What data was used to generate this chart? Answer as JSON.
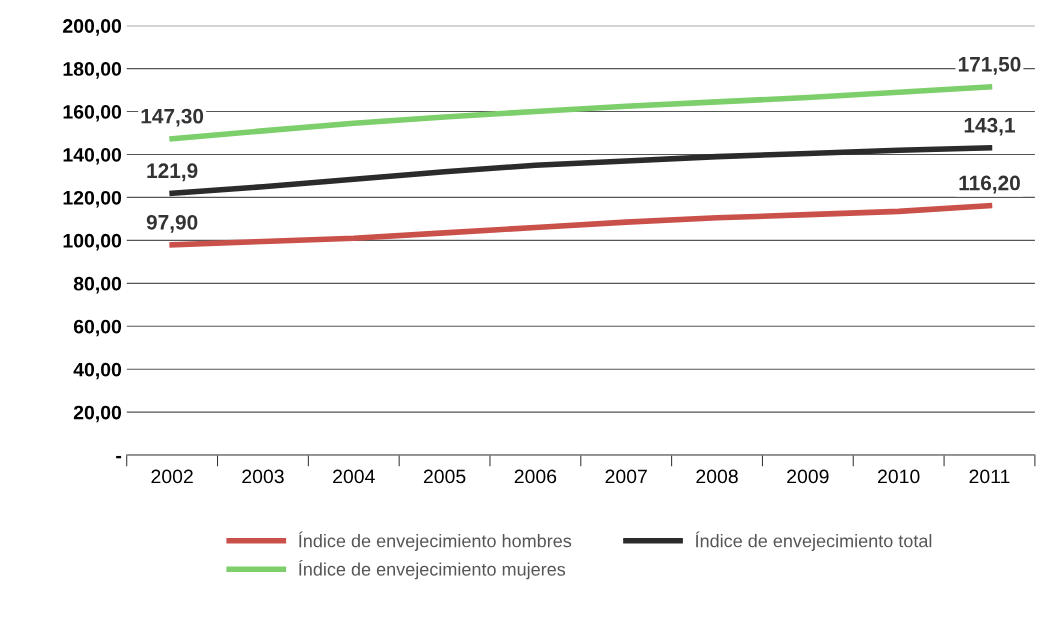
{
  "chart_data": {
    "type": "line",
    "categories": [
      "2002",
      "2003",
      "2004",
      "2005",
      "2006",
      "2007",
      "2008",
      "2009",
      "2010",
      "2011"
    ],
    "series": [
      {
        "name": "Índice de envejecimiento hombres",
        "color": "#c9514a",
        "values": [
          97.9,
          99.5,
          101,
          103.5,
          106,
          108.5,
          110.5,
          112,
          113.5,
          116.2
        ],
        "value_labels": [
          "97,90",
          null,
          null,
          null,
          null,
          null,
          null,
          null,
          null,
          "116,20"
        ]
      },
      {
        "name": "Índice de envejecimiento mujeres",
        "color": "#7ccf6a",
        "values": [
          147.3,
          151,
          154.5,
          157.5,
          160,
          162.5,
          164.5,
          166.5,
          169,
          171.5
        ],
        "value_labels": [
          "147,30",
          null,
          null,
          null,
          null,
          null,
          null,
          null,
          null,
          "171,50"
        ]
      },
      {
        "name": "Índice de envejecimiento total",
        "color": "#2b2b2b",
        "values": [
          121.9,
          125,
          128.5,
          132,
          135,
          137,
          139,
          140.5,
          142,
          143.1
        ],
        "value_labels": [
          "121,9",
          null,
          null,
          null,
          null,
          null,
          null,
          null,
          null,
          "143,1"
        ]
      }
    ],
    "ylim": [
      0,
      200
    ],
    "yticks": [
      {
        "value": 0,
        "label": "-"
      },
      {
        "value": 20,
        "label": "20,00"
      },
      {
        "value": 40,
        "label": "40,00"
      },
      {
        "value": 60,
        "label": "60,00"
      },
      {
        "value": 80,
        "label": "80,00"
      },
      {
        "value": 100,
        "label": "100,00"
      },
      {
        "value": 120,
        "label": "120,00"
      },
      {
        "value": 140,
        "label": "140,00"
      },
      {
        "value": 160,
        "label": "160,00"
      },
      {
        "value": 180,
        "label": "180,00"
      },
      {
        "value": 200,
        "label": "200,00"
      }
    ],
    "grid": "y",
    "legend": "bottom",
    "marker": "none",
    "line_style": "solid"
  }
}
